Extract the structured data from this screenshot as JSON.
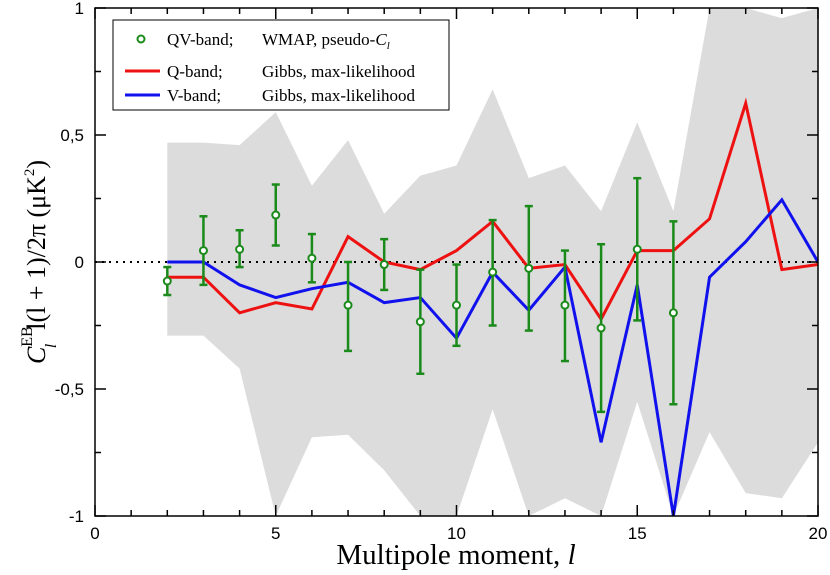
{
  "chart_data": {
    "type": "line",
    "xlabel": "Multipole moment, l",
    "xlabel_main": "Multipole moment,",
    "xlabel_var": "l",
    "ylabel": "C_l^EB l(l + 1)/2π (μK^2)",
    "ylabel_parts": {
      "C": "C",
      "EB": "EB",
      "sub": "l",
      "expr": "l(l + 1)/2π (μK",
      "sup": "2",
      "close": ")"
    },
    "xlim": [
      0,
      20
    ],
    "ylim": [
      -1,
      1
    ],
    "x_ticks": [
      0,
      5,
      10,
      15,
      20
    ],
    "x_tick_labels": [
      "0",
      "5",
      "10",
      "15",
      "20"
    ],
    "y_ticks": [
      -1,
      -0.5,
      0,
      0.5,
      1
    ],
    "y_tick_labels": [
      "-1",
      "-0,5",
      "0",
      "0,5",
      "1"
    ],
    "zero_line": "dotted",
    "legend_position": "top-left",
    "legend": [
      {
        "band": "QV-band;",
        "method": "WMAP, pseudo-",
        "method_var": "C",
        "method_sub": "l"
      },
      {
        "band": "Q-band;",
        "method": "Gibbs, max-likelihood"
      },
      {
        "band": "V-band;",
        "method": "Gibbs, max-likelihood"
      }
    ],
    "series": [
      {
        "name": "QV-band; WMAP, pseudo-Cl",
        "kind": "errorbar",
        "color": "#1a8a1a",
        "x": [
          2,
          3,
          4,
          5,
          6,
          7,
          8,
          9,
          10,
          11,
          12,
          13,
          14,
          15,
          16
        ],
        "y": [
          -0.075,
          0.045,
          0.05,
          0.185,
          0.015,
          -0.17,
          -0.01,
          -0.235,
          -0.17,
          -0.04,
          -0.025,
          -0.17,
          -0.26,
          0.05,
          -0.2
        ],
        "yerr_low": [
          -0.13,
          -0.09,
          -0.02,
          0.065,
          -0.08,
          -0.35,
          -0.11,
          -0.44,
          -0.33,
          -0.25,
          -0.27,
          -0.39,
          -0.59,
          -0.23,
          -0.56
        ],
        "yerr_high": [
          -0.02,
          0.18,
          0.125,
          0.305,
          0.11,
          0.0,
          0.09,
          -0.03,
          -0.01,
          0.165,
          0.22,
          0.045,
          0.07,
          0.33,
          0.16
        ]
      },
      {
        "name": "Q-band; Gibbs, max-likelihood",
        "kind": "line",
        "color": "#ee1111",
        "x": [
          2,
          3,
          4,
          5,
          6,
          7,
          8,
          9,
          10,
          11,
          12,
          13,
          14,
          15,
          16,
          17,
          18,
          19,
          20
        ],
        "y": [
          -0.06,
          -0.06,
          -0.2,
          -0.16,
          -0.185,
          0.1,
          0.0,
          -0.03,
          0.045,
          0.16,
          -0.025,
          -0.01,
          -0.225,
          0.045,
          0.045,
          0.17,
          0.625,
          -0.03,
          -0.01
        ]
      },
      {
        "name": "V-band; Gibbs, max-likelihood",
        "kind": "line",
        "color": "#1111ee",
        "x": [
          2,
          3,
          4,
          5,
          6,
          7,
          8,
          9,
          10,
          11,
          12,
          13,
          14,
          15,
          16,
          17,
          18,
          19,
          20
        ],
        "y": [
          0.0,
          0.0,
          -0.09,
          -0.14,
          -0.105,
          -0.08,
          -0.16,
          -0.14,
          -0.3,
          -0.04,
          -0.19,
          -0.02,
          -0.71,
          -0.09,
          -1.0,
          -0.06,
          0.08,
          0.245,
          0.0
        ]
      }
    ],
    "band": {
      "name": "shaded confidence region",
      "color": "#dcdcdc",
      "x": [
        2,
        3,
        4,
        5,
        6,
        7,
        8,
        9,
        10,
        11,
        12,
        13,
        14,
        15,
        16,
        17,
        18,
        19,
        20
      ],
      "upper": [
        0.47,
        0.47,
        0.46,
        0.59,
        0.3,
        0.48,
        0.19,
        0.34,
        0.38,
        0.68,
        0.33,
        0.38,
        0.2,
        0.55,
        0.2,
        1.0,
        1.0,
        0.96,
        1.0
      ],
      "lower": [
        -0.29,
        -0.29,
        -0.42,
        -1.0,
        -0.69,
        -0.68,
        -0.82,
        -1.0,
        -1.0,
        -0.58,
        -1.0,
        -0.93,
        -1.0,
        -0.55,
        -1.0,
        -0.67,
        -0.91,
        -0.93,
        -0.71
      ]
    }
  }
}
